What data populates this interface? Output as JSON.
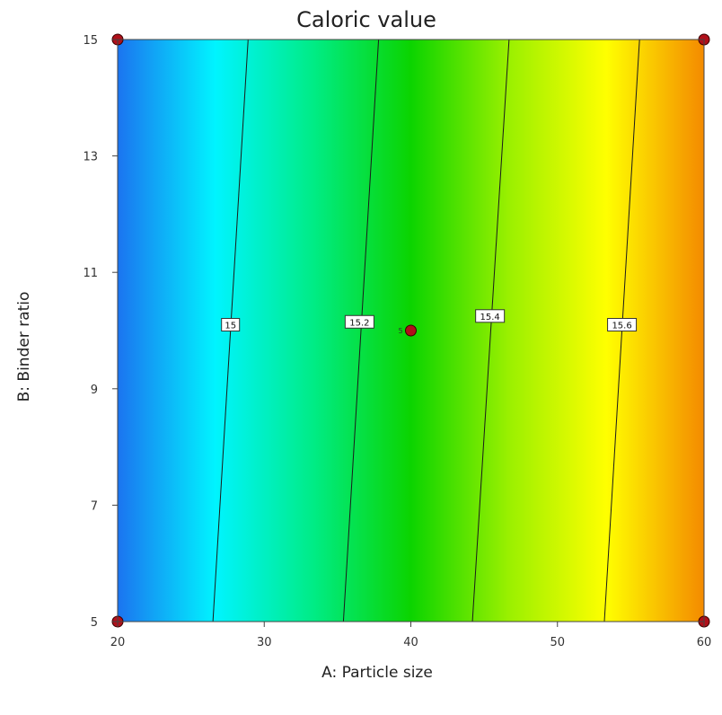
{
  "chart_data": {
    "type": "contour",
    "title": "Caloric value",
    "xlabel": "A: Particle size",
    "ylabel": "B: Binder ratio",
    "xlim": [
      20,
      60
    ],
    "ylim": [
      5,
      15
    ],
    "x_ticks": [
      "20",
      "30",
      "40",
      "50",
      "60"
    ],
    "y_ticks": [
      "5",
      "7",
      "9",
      "11",
      "13",
      "15"
    ],
    "colorscale": [
      "#1b74f0",
      "#00f4ff",
      "#00ec86",
      "#0bd400",
      "#9af000",
      "#ffff00",
      "#f48a00"
    ],
    "contours": [
      {
        "label": "15",
        "value": 15.0,
        "x_at_bottom": 26.5,
        "x_at_top": 28.9,
        "label_at": [
          27.7,
          10.1
        ]
      },
      {
        "label": "15.2",
        "value": 15.2,
        "x_at_bottom": 35.4,
        "x_at_top": 37.8,
        "label_at": [
          36.5,
          10.15
        ]
      },
      {
        "label": "15.4",
        "value": 15.4,
        "x_at_bottom": 44.2,
        "x_at_top": 46.7,
        "label_at": [
          45.4,
          10.25
        ]
      },
      {
        "label": "15.6",
        "value": 15.6,
        "x_at_bottom": 53.2,
        "x_at_top": 55.6,
        "label_at": [
          54.4,
          10.1
        ]
      }
    ],
    "design_points": [
      {
        "x": 20,
        "y": 15,
        "label": ""
      },
      {
        "x": 60,
        "y": 15,
        "label": ""
      },
      {
        "x": 20,
        "y": 5,
        "label": ""
      },
      {
        "x": 60,
        "y": 5,
        "label": ""
      },
      {
        "x": 40,
        "y": 10,
        "label": "5"
      }
    ],
    "grid": false
  }
}
